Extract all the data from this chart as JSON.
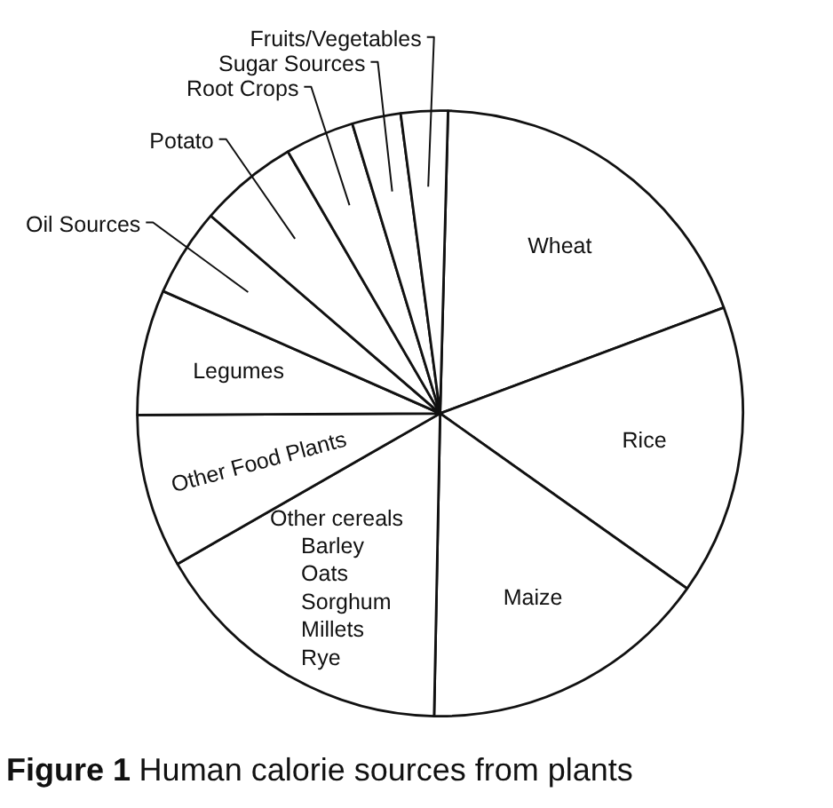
{
  "chart_data": {
    "type": "pie",
    "title": "Figure 1 Human calorie sources from plants",
    "categories": [
      "Wheat",
      "Rice",
      "Maize",
      "Other cereals\nBarley\nOats\nSorghum\nMillets\nRye",
      "Other Food Plants",
      "Legumes",
      "Oil Sources",
      "Potato",
      "Root Crops",
      "Sugar Sources",
      "Fruits/Vegetables"
    ],
    "values": [
      18.9,
      15.5,
      15.5,
      16.4,
      8.2,
      6.7,
      4.7,
      5.3,
      3.7,
      2.6,
      2.5
    ],
    "colors": [
      "#ffffff",
      "#ffffff",
      "#ffffff",
      "#ffffff",
      "#ffffff",
      "#ffffff",
      "#ffffff",
      "#ffffff",
      "#ffffff",
      "#ffffff",
      "#ffffff"
    ]
  }
}
